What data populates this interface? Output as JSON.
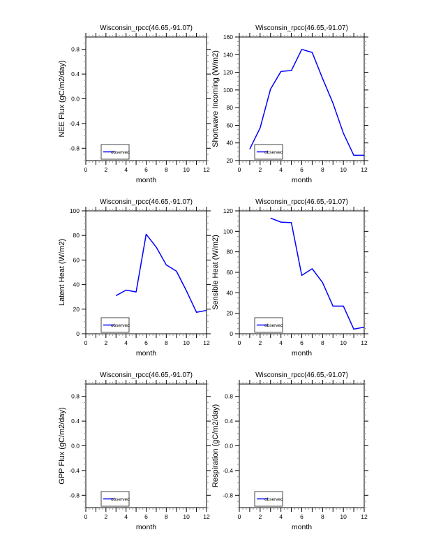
{
  "page": {
    "background": "#ffffff",
    "accent_line_color": "#0000ff"
  },
  "chart_data": [
    {
      "id": "nee",
      "type": "line",
      "grid": {
        "row": 0,
        "col": "left"
      },
      "title": "Wisconsin_rpcc(46.65,-91.07)",
      "xlabel": "month",
      "ylabel": "NEE Flux (gC/m2/day)",
      "xlim": [
        0,
        12
      ],
      "xtick_labels": [
        0,
        2,
        4,
        6,
        8,
        10,
        12
      ],
      "x_major_step": 1,
      "x_minor_divisions": 3,
      "ylim": [
        -1,
        1
      ],
      "yticks": [
        -0.8,
        -0.4,
        0,
        0.4,
        0.8
      ],
      "y_decimals": 1,
      "y_minor_step": 0.1,
      "grid_lines": "off",
      "legend": {
        "label": "observed",
        "color": "#0000ff",
        "position": "lower-left"
      },
      "series": []
    },
    {
      "id": "shortwave",
      "type": "line",
      "grid": {
        "row": 0,
        "col": "right"
      },
      "title": "Wisconsin_rpcc(46.65,-91.07)",
      "xlabel": "month",
      "ylabel": "Shortwave Incoming (W/m2)",
      "xlim": [
        0,
        12
      ],
      "xtick_labels": [
        0,
        2,
        4,
        6,
        8,
        10,
        12
      ],
      "x_major_step": 1,
      "x_minor_divisions": 3,
      "ylim": [
        20,
        160
      ],
      "yticks": [
        20,
        40,
        60,
        80,
        100,
        120,
        140,
        160
      ],
      "y_decimals": 0,
      "y_minor_step": 5,
      "grid_lines": "off",
      "legend": {
        "label": "observed",
        "color": "#0000ff",
        "position": "lower-left"
      },
      "series": [
        {
          "name": "observed",
          "color": "#0000ff",
          "x": [
            1,
            2,
            3,
            4,
            5,
            6,
            7,
            8,
            9,
            10,
            11,
            12
          ],
          "y": [
            33,
            57,
            101,
            121,
            122,
            146,
            142.5,
            113,
            85,
            51,
            26,
            26
          ]
        }
      ]
    },
    {
      "id": "latent",
      "type": "line",
      "grid": {
        "row": 1,
        "col": "left"
      },
      "title": "Wisconsin_rpcc(46.65,-91.07)",
      "xlabel": "month",
      "ylabel": "Latent Heat (W/m2)",
      "xlim": [
        0,
        12
      ],
      "xtick_labels": [
        0,
        2,
        4,
        6,
        8,
        10,
        12
      ],
      "x_major_step": 1,
      "x_minor_divisions": 3,
      "ylim": [
        0,
        100
      ],
      "yticks": [
        0,
        20,
        40,
        60,
        80,
        100
      ],
      "y_decimals": 0,
      "y_minor_step": 5,
      "grid_lines": "off",
      "legend": {
        "label": "observed",
        "color": "#0000ff",
        "position": "lower-left"
      },
      "series": [
        {
          "name": "observed",
          "color": "#0000ff",
          "x": [
            3,
            4,
            5,
            6,
            7,
            8,
            9,
            10,
            11,
            12
          ],
          "y": [
            31,
            35.5,
            34,
            81,
            70.5,
            56,
            51,
            35,
            17.5,
            19
          ]
        }
      ]
    },
    {
      "id": "sensible",
      "type": "line",
      "grid": {
        "row": 1,
        "col": "right"
      },
      "title": "Wisconsin_rpcc(46.65,-91.07)",
      "xlabel": "month",
      "ylabel": "Sensible Heat (W/m2)",
      "xlim": [
        0,
        12
      ],
      "xtick_labels": [
        0,
        2,
        4,
        6,
        8,
        10,
        12
      ],
      "x_major_step": 1,
      "x_minor_divisions": 3,
      "ylim": [
        0,
        120
      ],
      "yticks": [
        0,
        20,
        40,
        60,
        80,
        100,
        120
      ],
      "y_decimals": 0,
      "y_minor_step": 5,
      "grid_lines": "off",
      "legend": {
        "label": "observed",
        "color": "#0000ff",
        "position": "lower-left"
      },
      "series": [
        {
          "name": "observed",
          "color": "#0000ff",
          "x": [
            3,
            4,
            5,
            6,
            7,
            8,
            9,
            10,
            11,
            12
          ],
          "y": [
            113,
            109,
            108.5,
            57,
            63.5,
            50,
            27,
            27,
            4.5,
            6.5
          ]
        }
      ]
    },
    {
      "id": "gpp",
      "type": "line",
      "grid": {
        "row": 2,
        "col": "left"
      },
      "title": "Wisconsin_rpcc(46.65,-91.07)",
      "xlabel": "month",
      "ylabel": "GPP Flux (gC/m2/day)",
      "xlim": [
        0,
        12
      ],
      "xtick_labels": [
        0,
        2,
        4,
        6,
        8,
        10,
        12
      ],
      "x_major_step": 1,
      "x_minor_divisions": 3,
      "ylim": [
        -1,
        1
      ],
      "yticks": [
        -0.8,
        -0.4,
        0,
        0.4,
        0.8
      ],
      "y_decimals": 1,
      "y_minor_step": 0.1,
      "grid_lines": "off",
      "legend": {
        "label": "observed",
        "color": "#0000ff",
        "position": "lower-left"
      },
      "series": []
    },
    {
      "id": "respiration",
      "type": "line",
      "grid": {
        "row": 2,
        "col": "right"
      },
      "title": "Wisconsin_rpcc(46.65,-91.07)",
      "xlabel": "month",
      "ylabel": "Respiration (gC/m2/day)",
      "xlim": [
        0,
        12
      ],
      "xtick_labels": [
        0,
        2,
        4,
        6,
        8,
        10,
        12
      ],
      "x_major_step": 1,
      "x_minor_divisions": 3,
      "ylim": [
        -1,
        1
      ],
      "yticks": [
        -0.8,
        -0.4,
        0,
        0.4,
        0.8
      ],
      "y_decimals": 1,
      "y_minor_step": 0.1,
      "grid_lines": "off",
      "legend": {
        "label": "observed",
        "color": "#0000ff",
        "position": "lower-left"
      },
      "series": []
    }
  ]
}
